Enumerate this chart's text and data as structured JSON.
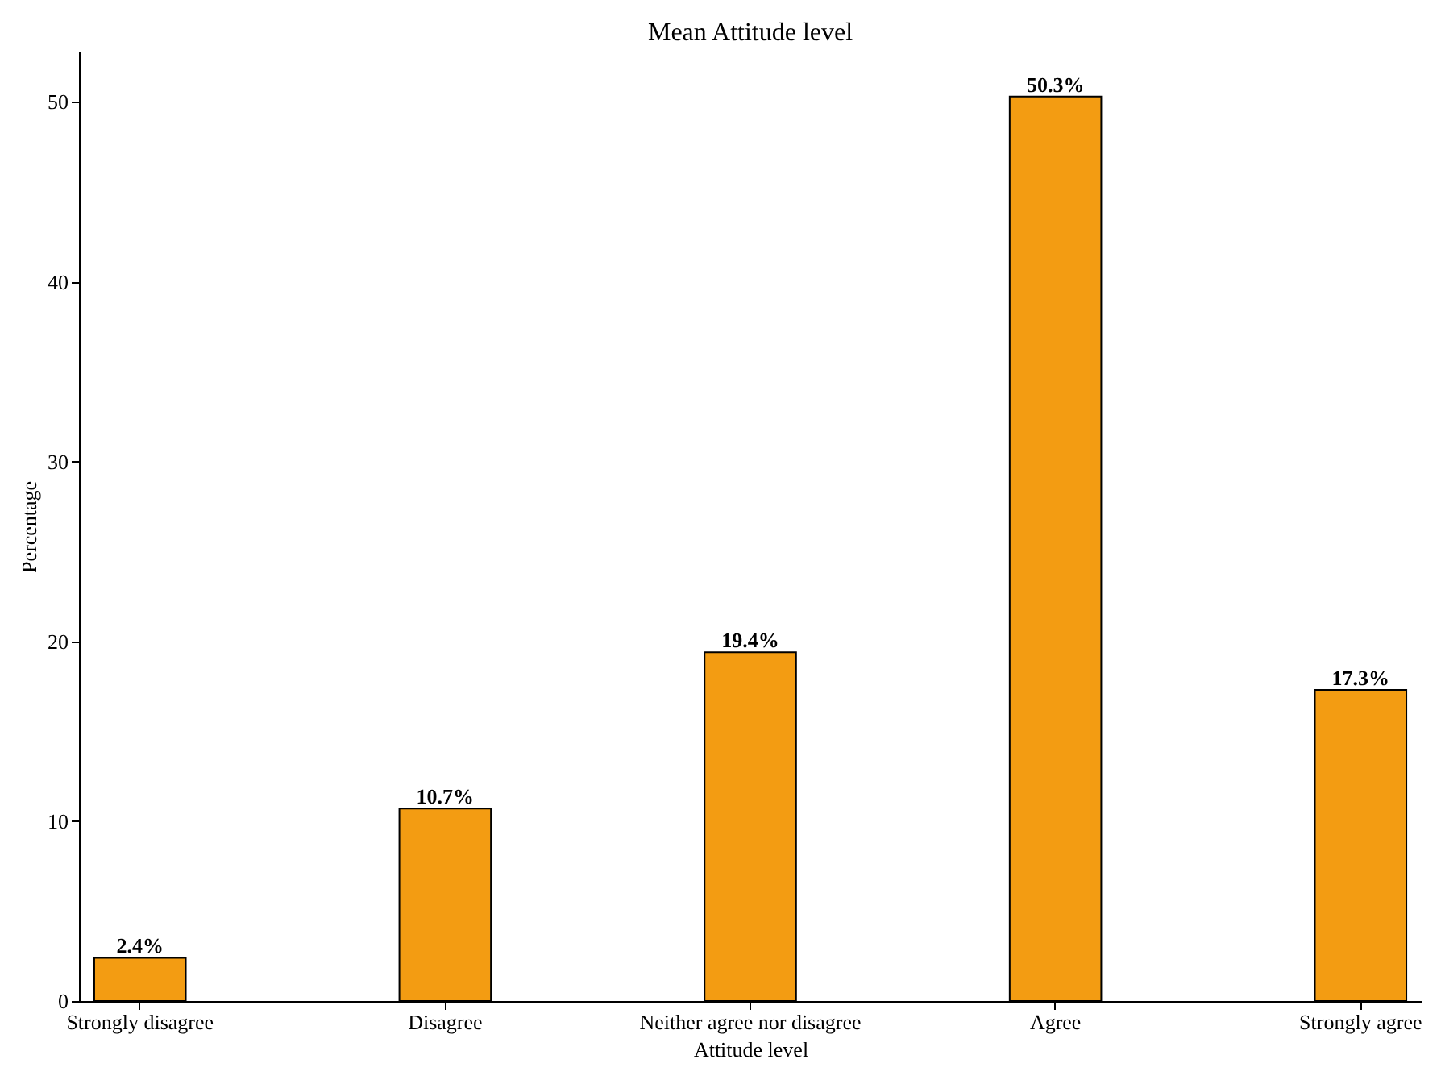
{
  "chart_data": {
    "type": "bar",
    "title": "Mean Attitude level",
    "xlabel": "Attitude level",
    "ylabel": "Percentage",
    "categories": [
      "Strongly disagree",
      "Disagree",
      "Neither agree nor disagree",
      "Agree",
      "Strongly agree"
    ],
    "values": [
      2.4,
      10.7,
      19.4,
      50.3,
      17.3
    ],
    "value_labels": [
      "2.4%",
      "10.7%",
      "19.4%",
      "50.3%",
      "17.3%"
    ],
    "color": "#f39c12",
    "ylim": [
      0,
      52.8
    ],
    "yticks": [
      0,
      10,
      20,
      30,
      40,
      50
    ],
    "grid": false
  }
}
